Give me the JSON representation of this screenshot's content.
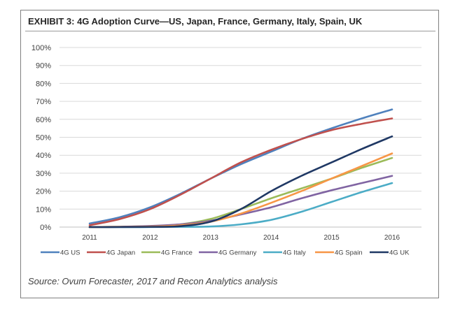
{
  "chart_data": {
    "type": "line",
    "title": "EXHIBIT 3: 4G Adoption Curve—US, Japan, France, Germany, Italy, Spain, UK",
    "source": "Source: Ovum Forecaster, 2017 and Recon Analytics analysis",
    "xlabel": "",
    "ylabel": "",
    "x": [
      "2011",
      "2011.5",
      "2012",
      "2012.5",
      "2013",
      "2013.5",
      "2014",
      "2014.5",
      "2015",
      "2015.5",
      "2016"
    ],
    "x_ticks": [
      "2011",
      "2012",
      "2013",
      "2014",
      "2015",
      "2016"
    ],
    "y_ticks": [
      "0%",
      "10%",
      "20%",
      "30%",
      "40%",
      "50%",
      "60%",
      "70%",
      "80%",
      "90%",
      "100%"
    ],
    "ylim": [
      0,
      100
    ],
    "grid": true,
    "legend_position": "bottom",
    "series": [
      {
        "name": "4G US",
        "color": "#4f81bd",
        "values": [
          2,
          5.5,
          11,
          18.5,
          27,
          35,
          42,
          49,
          55,
          60.5,
          65.5
        ]
      },
      {
        "name": "4G Japan",
        "color": "#c0504d",
        "values": [
          1,
          4.5,
          10,
          18,
          27,
          36,
          43,
          49,
          54,
          57.5,
          60.5
        ]
      },
      {
        "name": "4G France",
        "color": "#9bbb59",
        "values": [
          0,
          0.2,
          0.5,
          1.5,
          4.5,
          10,
          16,
          21.5,
          27,
          33,
          38.5
        ]
      },
      {
        "name": "4G Germany",
        "color": "#8064a2",
        "values": [
          0,
          0.2,
          0.6,
          1.5,
          3.5,
          7,
          11,
          16,
          20.5,
          24.5,
          28.5
        ]
      },
      {
        "name": "4G Italy",
        "color": "#4bacc6",
        "values": [
          0,
          0,
          0,
          0.1,
          0.3,
          1.5,
          4,
          8.5,
          14,
          19.5,
          24.5
        ]
      },
      {
        "name": "4G Spain",
        "color": "#f79646",
        "values": [
          0,
          0.1,
          0.3,
          1,
          3,
          7.5,
          13.5,
          20,
          27,
          34,
          41
        ]
      },
      {
        "name": "4G UK",
        "color": "#1f3864",
        "values": [
          0,
          0,
          0.1,
          0.5,
          3,
          10,
          20,
          28.5,
          36,
          43.5,
          50.5
        ]
      }
    ]
  }
}
